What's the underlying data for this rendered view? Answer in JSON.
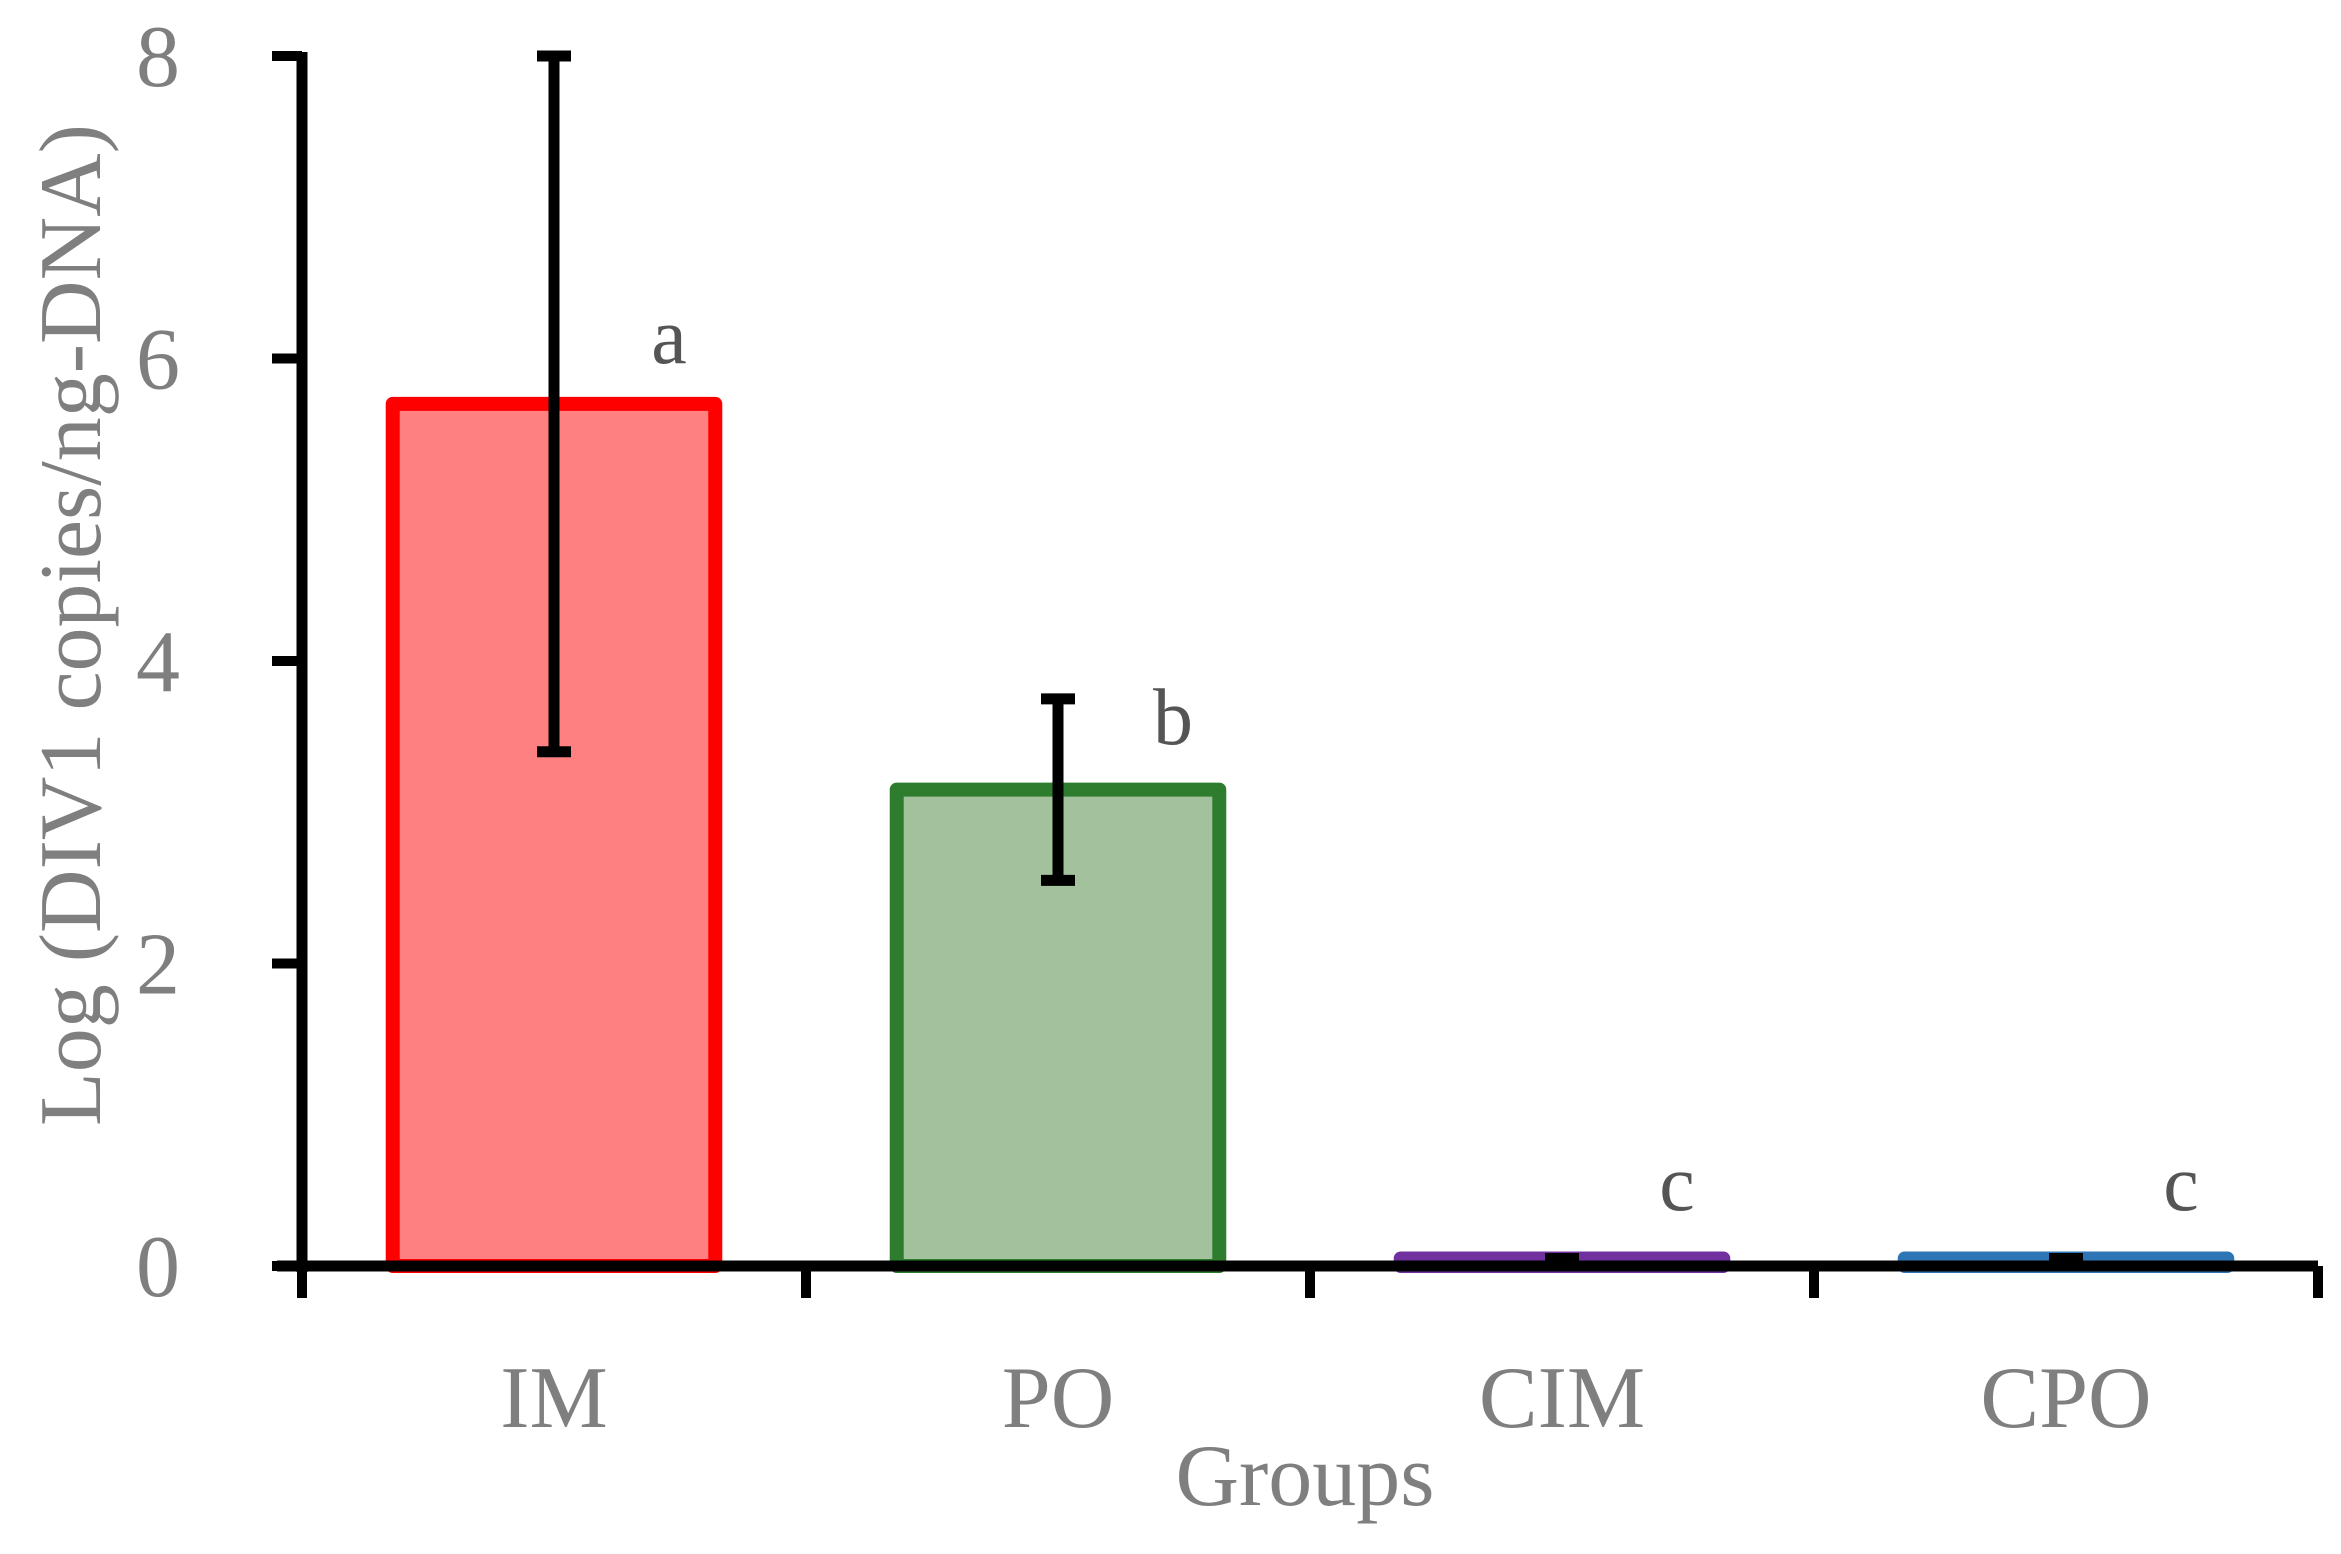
{
  "chart_data": {
    "type": "bar",
    "xlabel": "Groups",
    "ylabel": "Log (DIV1 copies/ng-DNA)",
    "ylim": [
      0,
      8
    ],
    "yticks": [
      "0",
      "2",
      "4",
      "6",
      "8"
    ],
    "categories": [
      "IM",
      "PO",
      "CIM",
      "CPO"
    ],
    "values": [
      5.7,
      3.15,
      0.05,
      0.05
    ],
    "error_low": [
      3.4,
      2.55,
      0.05,
      0.05
    ],
    "error_high": [
      8.0,
      3.75,
      0.05,
      0.05
    ],
    "significance": [
      "a",
      "b",
      "c",
      "c"
    ],
    "fill_colors": [
      "#ff8080",
      "#a2c19c",
      "#7030a0",
      "#2e75b6"
    ],
    "stroke_colors": [
      "#ff0000",
      "#2e7d2e",
      "#7030a0",
      "#2e75b6"
    ],
    "grid": false,
    "legend": "none"
  }
}
